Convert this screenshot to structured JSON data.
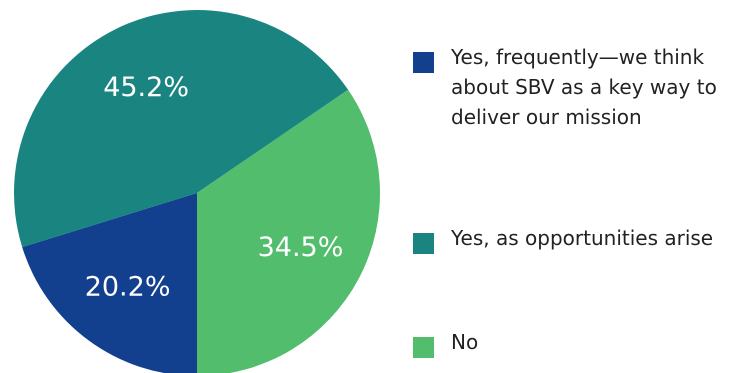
{
  "chart_data": {
    "type": "pie",
    "slices": [
      {
        "label": "Yes, frequently—we think about SBV as a key way to deliver our mission",
        "value": 20.2,
        "value_label": "20.2%",
        "color": "#133f8f"
      },
      {
        "label": "Yes, as opportunities arise",
        "value": 45.2,
        "value_label": "45.2%",
        "color": "#1a8580"
      },
      {
        "label": "No",
        "value": 34.5,
        "value_label": "34.5%",
        "color": "#52bd6d"
      }
    ],
    "legend_position": "right"
  }
}
